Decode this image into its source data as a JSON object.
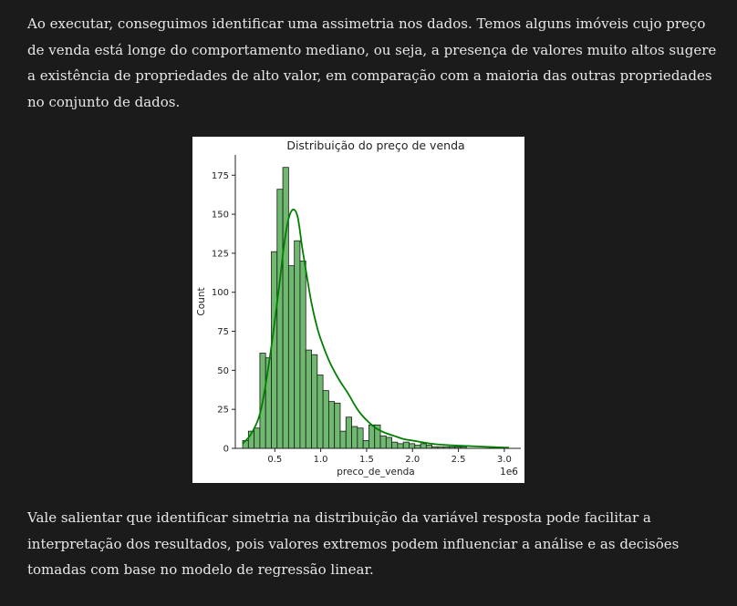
{
  "paragraphs": {
    "intro": "Ao executar, conseguimos identificar uma assimetria nos dados. Temos alguns imóveis cujo preço de venda está longe do comportamento mediano, ou seja, a presença de valores muito altos sugere a existência de propriedades de alto valor, em comparação com a maioria das outras propriedades no conjunto de dados.",
    "conclusion": "Vale salientar que identificar simetria na distribuição da variável resposta pode facilitar a interpretação dos resultados, pois valores extremos podem influenciar a análise e as decisões tomadas com base no modelo de regressão linear."
  },
  "chart_data": {
    "type": "histogram",
    "title": "Distribuição do preço de venda",
    "xlabel": "preco_de_venda",
    "ylabel": "Count",
    "x_offset_label": "1e6",
    "xlim": [
      0.07,
      3.18
    ],
    "ylim": [
      0,
      188
    ],
    "xticks": [
      0.5,
      1.0,
      1.5,
      2.0,
      2.5,
      3.0
    ],
    "xtick_labels": [
      "0.5",
      "1.0",
      "1.5",
      "2.0",
      "2.5",
      "3.0"
    ],
    "yticks": [
      0,
      25,
      50,
      75,
      100,
      125,
      150,
      175
    ],
    "ytick_labels": [
      "0",
      "25",
      "50",
      "75",
      "100",
      "125",
      "150",
      "175"
    ],
    "bin_start": 0.15,
    "bin_width": 0.0625,
    "counts": [
      5,
      11,
      13,
      61,
      58,
      126,
      166,
      180,
      117,
      133,
      120,
      63,
      60,
      47,
      37,
      30,
      29,
      11,
      20,
      14,
      13,
      5,
      15,
      15,
      8,
      7,
      4,
      3,
      4,
      3,
      2,
      3,
      2,
      1,
      1,
      1,
      1,
      1,
      1,
      0,
      0,
      0,
      0,
      1
    ],
    "kde": {
      "x": [
        0.15,
        0.25,
        0.35,
        0.45,
        0.55,
        0.6,
        0.65,
        0.7,
        0.75,
        0.8,
        0.85,
        0.9,
        0.95,
        1.0,
        1.1,
        1.2,
        1.3,
        1.4,
        1.5,
        1.6,
        1.7,
        1.8,
        1.9,
        2.0,
        2.2,
        2.4,
        2.6,
        2.8,
        3.0,
        3.05
      ],
      "y": [
        3,
        10,
        25,
        60,
        105,
        130,
        147,
        153,
        148,
        128,
        110,
        93,
        80,
        70,
        55,
        44,
        35,
        25,
        18,
        13,
        10,
        8,
        6,
        5,
        3,
        2,
        1.5,
        1,
        0.5,
        0.5
      ]
    },
    "colors": {
      "bar_fill": "#6fb86f",
      "bar_edge": "#1a1a1a",
      "kde_line": "#008000"
    },
    "grid": false,
    "legend": "none"
  }
}
